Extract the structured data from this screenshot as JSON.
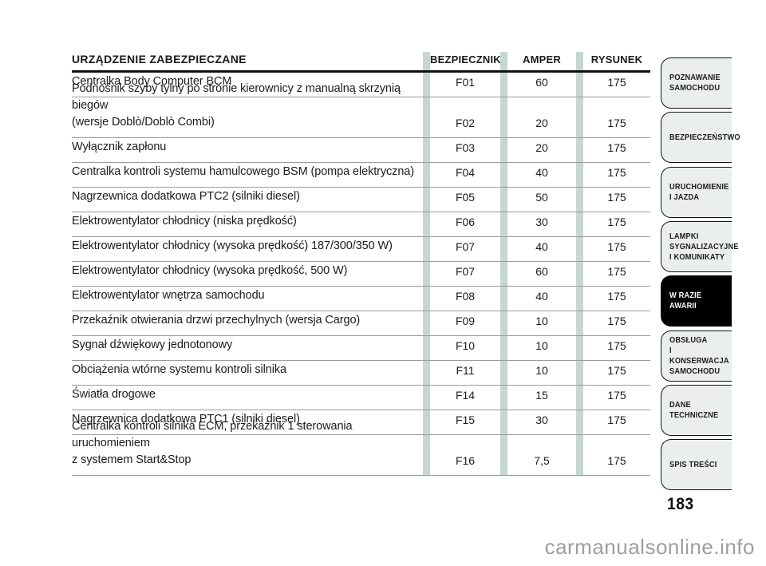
{
  "page": {
    "number": "183",
    "watermark": "carmanualsonline.info"
  },
  "table": {
    "headers": {
      "device": "URZĄDZENIE ZABEZPIECZANE",
      "fuse": "BEZPIECZNIK",
      "amper": "AMPER",
      "rysunek": "RYSUNEK"
    },
    "rows": [
      {
        "device": "Centralka Body Computer BCM",
        "fuse": "F01",
        "amper": "60",
        "rysunek": "175"
      },
      {
        "device": "Podnośnik szyby tylny po stronie kierownicy z manualną skrzynią biegów\n(wersje Doblò/Doblò Combi)",
        "fuse": "F02",
        "amper": "20",
        "rysunek": "175"
      },
      {
        "device": "Wyłącznik zapłonu",
        "fuse": "F03",
        "amper": "20",
        "rysunek": "175"
      },
      {
        "device": "Centralka kontroli systemu hamulcowego BSM (pompa elektryczna)",
        "fuse": "F04",
        "amper": "40",
        "rysunek": "175"
      },
      {
        "device": "Nagrzewnica dodatkowa PTC2 (silniki diesel)",
        "fuse": "F05",
        "amper": "50",
        "rysunek": "175"
      },
      {
        "device": "Elektrowentylator chłodnicy (niska prędkość)",
        "fuse": "F06",
        "amper": "30",
        "rysunek": "175"
      },
      {
        "device": "Elektrowentylator chłodnicy (wysoka prędkość) 187/300/350 W)",
        "fuse": "F07",
        "amper": "40",
        "rysunek": "175"
      },
      {
        "device": "Elektrowentylator chłodnicy (wysoka prędkość, 500 W)",
        "fuse": "F07",
        "amper": "60",
        "rysunek": "175"
      },
      {
        "device": "Elektrowentylator wnętrza samochodu",
        "fuse": "F08",
        "amper": "40",
        "rysunek": "175"
      },
      {
        "device": "Przekaźnik otwierania drzwi przechylnych (wersja Cargo)",
        "fuse": "F09",
        "amper": "10",
        "rysunek": "175"
      },
      {
        "device": "Sygnał dźwiękowy jednotonowy",
        "fuse": "F10",
        "amper": "10",
        "rysunek": "175"
      },
      {
        "device": "Obciążenia wtórne systemu kontroli silnika",
        "fuse": "F11",
        "amper": "10",
        "rysunek": "175"
      },
      {
        "device": "Światła drogowe",
        "fuse": "F14",
        "amper": "15",
        "rysunek": "175"
      },
      {
        "device": "Nagrzewnica dodatkowa PTC1 (silniki diesel)",
        "fuse": "F15",
        "amper": "30",
        "rysunek": "175"
      },
      {
        "device": "Centralka kontroli silnika ECM, przekaźnik 1 sterowania uruchomieniem\nz systemem Start&Stop",
        "fuse": "F16",
        "amper": "7,5",
        "rysunek": "175"
      }
    ]
  },
  "sidebar": {
    "tabs": [
      {
        "label": "POZNAWANIE\nSAMOCHODU",
        "active": false
      },
      {
        "label": "BEZPIECZEŃSTWO",
        "active": false
      },
      {
        "label": "URUCHOMIENIE\nI JAZDA",
        "active": false
      },
      {
        "label": "LAMPKI\nSYGNALIZACYJNE\nI KOMUNIKATY",
        "active": false
      },
      {
        "label": "W RAZIE AWARII",
        "active": true
      },
      {
        "label": "OBSŁUGA\nI KONSERWACJA\nSAMOCHODU",
        "active": false
      },
      {
        "label": "DANE\nTECHNICZNE",
        "active": false
      },
      {
        "label": "SPIS TREŚCI",
        "active": false
      }
    ]
  },
  "colors": {
    "divider_bar": "#c6d6d4",
    "tab_bg": "#eaefed",
    "tab_active_bg": "#000000",
    "text": "#1b1b1b",
    "watermark": "#9e9e9e"
  }
}
